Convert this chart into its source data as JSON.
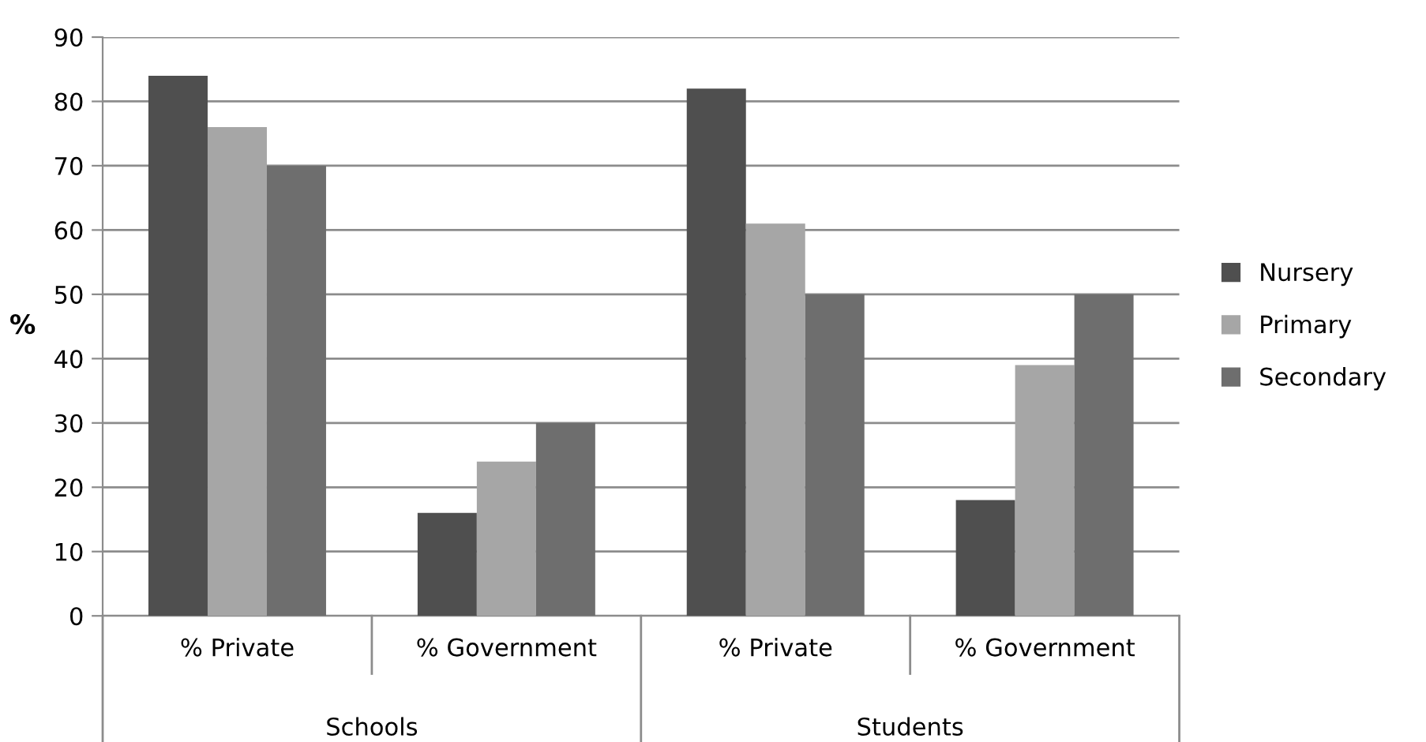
{
  "chart_data": {
    "type": "bar",
    "ylabel": "%",
    "categories": [
      "% Private",
      "% Government",
      "% Private",
      "% Government"
    ],
    "series": [
      {
        "name": "Nursery",
        "color": "#4f4f4f",
        "values": [
          84,
          16,
          82,
          18
        ]
      },
      {
        "name": "Primary",
        "color": "#a6a6a6",
        "values": [
          76,
          24,
          61,
          39
        ]
      },
      {
        "name": "Secondary",
        "color": "#6e6e6e",
        "values": [
          70,
          30,
          50,
          50
        ]
      }
    ],
    "annotations": [
      "Schools",
      "Students"
    ],
    "ylim": [
      0,
      90
    ],
    "yticks": [
      0,
      10,
      20,
      30,
      40,
      50,
      60,
      70,
      80,
      90
    ],
    "grid": "y",
    "legend": "right"
  }
}
